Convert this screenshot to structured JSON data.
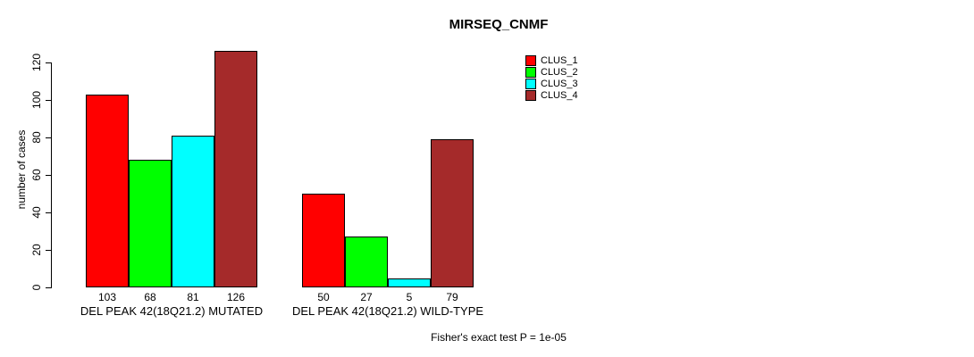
{
  "chart_data": {
    "type": "bar",
    "title": "MIRSEQ_CNMF",
    "ylabel": "number of cases",
    "xlabel": "",
    "footnote": "Fisher's exact test P = 1e-05",
    "categories": [
      "DEL PEAK 42(18Q21.2) MUTATED",
      "DEL PEAK 42(18Q21.2) WILD-TYPE"
    ],
    "series": [
      {
        "name": "CLUS_1",
        "color": "#ff0000",
        "values": [
          103,
          50
        ]
      },
      {
        "name": "CLUS_2",
        "color": "#00ff00",
        "values": [
          68,
          27
        ]
      },
      {
        "name": "CLUS_3",
        "color": "#00ffff",
        "values": [
          81,
          5
        ]
      },
      {
        "name": "CLUS_4",
        "color": "#a52a2a",
        "values": [
          126,
          79
        ]
      }
    ],
    "yticks": [
      0,
      20,
      40,
      60,
      80,
      100,
      120
    ],
    "ylim": [
      0,
      130
    ],
    "grid": false,
    "legend_position": "top-right",
    "bar_value_labels_shown": true
  }
}
